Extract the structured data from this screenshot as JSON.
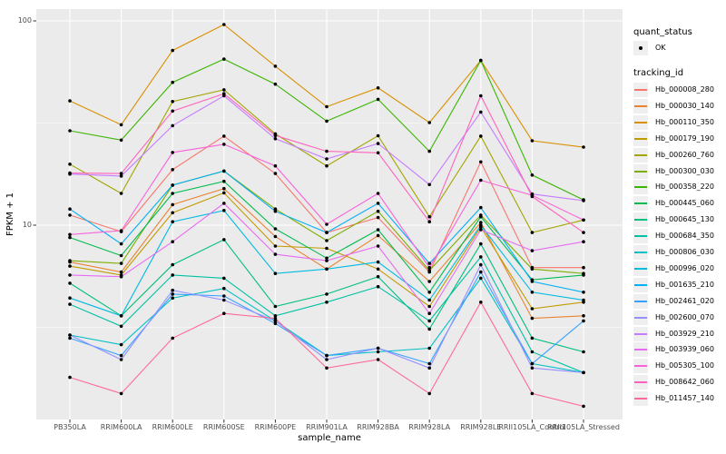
{
  "figure": {
    "panel_bg": "#EBEBEB",
    "grid_color": "#FFFFFF",
    "tick_color": "#333333",
    "point_color": "#000000"
  },
  "y_axis": {
    "title": "FPKM + 1",
    "tick_labels": [
      "100",
      "10"
    ],
    "tick_values": [
      100,
      10
    ],
    "minor_tick_values": [
      31.62,
      3.162
    ]
  },
  "x_axis": {
    "title": "sample_name"
  },
  "legend": {
    "quant_title": "quant_status",
    "quant_item_label": "OK",
    "tracking_title": "tracking_id"
  },
  "chart_data": {
    "type": "line",
    "title": "",
    "xlabel": "sample_name",
    "ylabel": "FPKM + 1",
    "y_scale": "log10",
    "ylim": [
      1.1,
      115
    ],
    "grid": true,
    "legend_position": "right",
    "point_shape": "filled-black-circle",
    "categories": [
      "PB350LA",
      "RRIM600LA",
      "RRIM600LE",
      "RRIM600SE",
      "RRIM600PE",
      "RRIM901LA",
      "RRIM928BA",
      "RRIM928LA",
      "RRIM928LE",
      "RRII105LA_Control",
      "RRII105LA_Stressed"
    ],
    "series": [
      {
        "name": "Hb_000008_280",
        "color": "#F8766D",
        "values": [
          11.2,
          9.3,
          18.7,
          27.3,
          17.9,
          9.2,
          10.9,
          5.9,
          20.4,
          6.2,
          6.2
        ]
      },
      {
        "name": "Hb_000030_140",
        "color": "#EA8331",
        "values": [
          6.6,
          5.9,
          12.6,
          15.1,
          8.8,
          6.1,
          8.9,
          5.3,
          10.3,
          3.5,
          3.6
        ]
      },
      {
        "name": "Hb_000110_350",
        "color": "#D89000",
        "values": [
          40.6,
          31.0,
          71.6,
          96.0,
          60.0,
          38.0,
          47.0,
          31.8,
          64.0,
          25.9,
          24.1
        ]
      },
      {
        "name": "Hb_000179_190",
        "color": "#C09B00",
        "values": [
          6.3,
          5.7,
          11.5,
          14.4,
          7.9,
          7.7,
          6.1,
          4.0,
          9.8,
          3.9,
          4.2
        ]
      },
      {
        "name": "Hb_000260_760",
        "color": "#A3A500",
        "values": [
          19.9,
          14.3,
          40.3,
          46.0,
          28.0,
          19.5,
          27.4,
          11.0,
          27.3,
          9.2,
          10.6
        ]
      },
      {
        "name": "Hb_000300_030",
        "color": "#7CAE00",
        "values": [
          6.7,
          6.5,
          15.7,
          18.4,
          12.0,
          8.4,
          11.7,
          6.0,
          11.2,
          6.1,
          5.8
        ]
      },
      {
        "name": "Hb_000358_220",
        "color": "#39B600",
        "values": [
          29.0,
          26.1,
          50.0,
          65.0,
          49.0,
          32.3,
          41.3,
          23.0,
          64.0,
          17.6,
          13.3
        ]
      },
      {
        "name": "Hb_000445_060",
        "color": "#00BB4E",
        "values": [
          8.7,
          7.1,
          14.3,
          16.4,
          9.6,
          6.9,
          9.5,
          4.7,
          11.0,
          5.4,
          5.7
        ]
      },
      {
        "name": "Hb_000645_130",
        "color": "#00BF7D",
        "values": [
          5.2,
          3.6,
          6.4,
          8.5,
          4.0,
          4.6,
          5.6,
          3.1,
          8.1,
          2.8,
          2.4
        ]
      },
      {
        "name": "Hb_000684_350",
        "color": "#00C1A3",
        "values": [
          4.1,
          3.2,
          5.7,
          5.5,
          3.6,
          4.2,
          5.0,
          3.4,
          7.0,
          2.4,
          1.9
        ]
      },
      {
        "name": "Hb_000806_030",
        "color": "#00BFC4",
        "values": [
          2.9,
          2.6,
          4.4,
          4.9,
          3.4,
          2.3,
          2.4,
          2.5,
          5.5,
          2.1,
          1.9
        ]
      },
      {
        "name": "Hb_000996_020",
        "color": "#00BAE0",
        "values": [
          4.4,
          3.6,
          10.4,
          11.8,
          5.8,
          6.1,
          6.6,
          4.3,
          10.0,
          4.7,
          4.3
        ]
      },
      {
        "name": "Hb_001635_210",
        "color": "#00B0F6",
        "values": [
          12.0,
          8.1,
          15.7,
          18.4,
          11.7,
          9.2,
          12.8,
          6.5,
          12.2,
          5.3,
          4.7
        ]
      },
      {
        "name": "Hb_002461_020",
        "color": "#35A2FF",
        "values": [
          2.8,
          2.3,
          4.6,
          4.5,
          3.3,
          2.3,
          2.5,
          2.1,
          5.9,
          2.1,
          3.4
        ]
      },
      {
        "name": "Hb_002600_070",
        "color": "#9590FF",
        "values": [
          2.9,
          2.2,
          4.8,
          4.3,
          3.4,
          2.2,
          2.5,
          2.0,
          6.4,
          2.0,
          1.9
        ]
      },
      {
        "name": "Hb_003929_210",
        "color": "#C77CFF",
        "values": [
          17.8,
          17.4,
          30.7,
          43.0,
          26.5,
          21.1,
          25.1,
          15.8,
          35.8,
          14.2,
          13.2
        ]
      },
      {
        "name": "Hb_003939_060",
        "color": "#E76BF3",
        "values": [
          5.7,
          5.6,
          8.3,
          12.8,
          7.2,
          6.7,
          7.9,
          3.7,
          9.5,
          7.5,
          8.3
        ]
      },
      {
        "name": "Hb_005305_100",
        "color": "#FA62DB",
        "values": [
          9.0,
          9.4,
          22.7,
          24.9,
          19.5,
          10.1,
          14.3,
          6.2,
          16.6,
          14.0,
          10.6
        ]
      },
      {
        "name": "Hb_008642_060",
        "color": "#FF62BC",
        "values": [
          18.0,
          17.9,
          36.2,
          44.0,
          27.5,
          23.0,
          22.6,
          10.4,
          43.0,
          13.8,
          9.2
        ]
      },
      {
        "name": "Hb_011457_140",
        "color": "#FF6A98",
        "values": [
          1.8,
          1.5,
          2.8,
          3.7,
          3.5,
          2.0,
          2.2,
          1.5,
          4.2,
          1.5,
          1.3
        ]
      }
    ]
  }
}
